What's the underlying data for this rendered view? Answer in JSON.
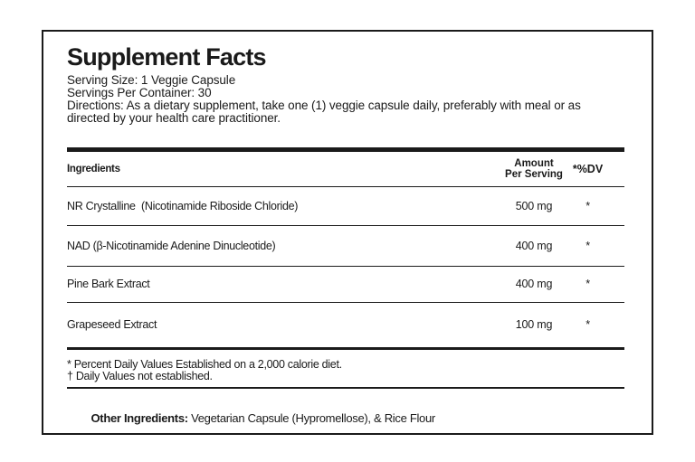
{
  "page": {
    "background_color": "#ffffff",
    "label_border_color": "#1b1b1b",
    "text_color": "#1a1a1a"
  },
  "label": {
    "title": "Supplement Facts",
    "serving_size": "Serving Size: 1 Veggie Capsule",
    "servings_per_container": "Servings Per Container: 30",
    "directions": "Directions: As a dietary supplement, take one (1) veggie capsule daily, preferably with meal or as directed by your health care practitioner.",
    "table": {
      "header": {
        "ingredients": "Ingredients",
        "amount_line1": "Amount",
        "amount_line2": "Per Serving",
        "dv": "*%DV"
      },
      "rows": [
        {
          "name": "NR Crystalline  (Nicotinamide Riboside Chloride)",
          "amount": "500 mg",
          "dv": "*"
        },
        {
          "name": "NAD (β-Nicotinamide Adenine Dinucleotide)",
          "amount": "400 mg",
          "dv": "*"
        },
        {
          "name": "Pine Bark Extract",
          "amount": "400 mg",
          "dv": "*"
        },
        {
          "name": "Grapeseed Extract",
          "amount": "100 mg",
          "dv": "*"
        }
      ]
    },
    "footnotes": {
      "line1": "* Percent Daily Values Established on a 2,000 calorie diet.",
      "line2": "† Daily Values not established."
    },
    "other_ingredients": {
      "label": "Other Ingredients:",
      "text": " Vegetarian Capsule (Hypromellose), & Rice Flour"
    }
  }
}
